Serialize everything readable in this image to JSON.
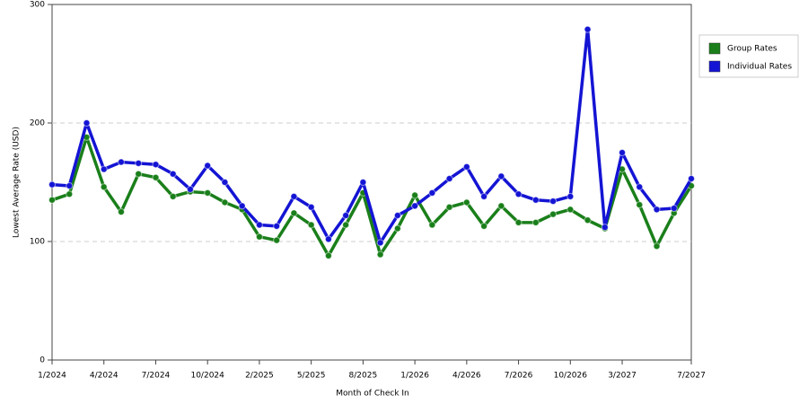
{
  "chart_data": {
    "type": "line",
    "x_label": "Month of Check In",
    "y_label": "Lowest Average Rate (USD)",
    "categories": [
      "1/2024",
      null,
      null,
      "4/2024",
      null,
      null,
      "7/2024",
      null,
      null,
      "10/2024",
      null,
      null,
      "2/2025",
      null,
      null,
      "5/2025",
      null,
      null,
      "8/2025",
      null,
      null,
      "1/2026",
      null,
      null,
      "4/2026",
      null,
      null,
      "7/2026",
      null,
      null,
      "10/2026",
      null,
      null,
      "3/2027",
      null,
      null,
      null,
      "7/2027"
    ],
    "series": [
      {
        "name": "Group Rates",
        "color": "#1a7f1a",
        "values": [
          135,
          140,
          188,
          146,
          125,
          157,
          154,
          138,
          142,
          141,
          133,
          127,
          104,
          101,
          124,
          114,
          88,
          114,
          141,
          89,
          111,
          139,
          114,
          129,
          133,
          113,
          130,
          116,
          116,
          123,
          127,
          118,
          111,
          161,
          131,
          96,
          124,
          147
        ]
      },
      {
        "name": "Individual Rates",
        "color": "#1414d4",
        "values": [
          148,
          147,
          200,
          161,
          167,
          166,
          165,
          157,
          144,
          164,
          150,
          130,
          114,
          113,
          138,
          129,
          102,
          122,
          150,
          99,
          122,
          130,
          141,
          153,
          163,
          138,
          155,
          140,
          135,
          134,
          138,
          279,
          112,
          175,
          146,
          127,
          128,
          153
        ]
      }
    ],
    "ylim": [
      0,
      300
    ],
    "yticks": [
      0,
      100,
      200,
      300
    ],
    "grid": true,
    "legend": "right"
  }
}
